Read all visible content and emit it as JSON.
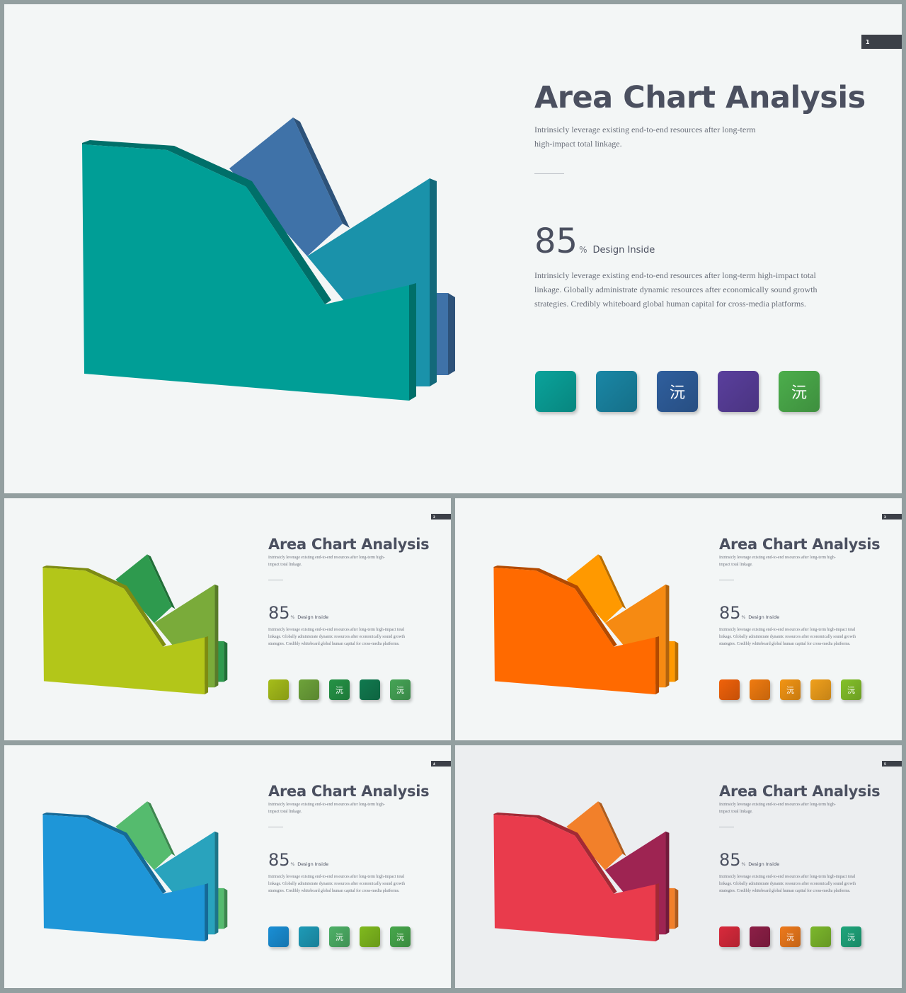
{
  "slides": [
    {
      "page": "1",
      "title": "Area Chart Analysis",
      "subtitle": "Intrinsicly leverage existing end-to-end resources after long-term high-impact total linkage.",
      "stat_value": "85",
      "stat_unit": "%",
      "stat_label": "Design Inside",
      "body": "Intrinsicly leverage existing end-to-end resources after long-term high-impact total linkage. Globally administrate dynamic resources after economically sound growth strategies. Credibly whiteboard global human capital for cross-media platforms.",
      "colors": {
        "back": "#3f72a8",
        "mid": "#1a92aa",
        "front": "#009e96"
      },
      "icons": [
        {
          "color": "#0aa39b",
          "glyph": ""
        },
        {
          "color": "#1a87a6",
          "glyph": ""
        },
        {
          "color": "#2f5f9e",
          "glyph": "沅"
        },
        {
          "color": "#5a3f9d",
          "glyph": ""
        },
        {
          "color": "#4cae4c",
          "glyph": "沅"
        }
      ]
    },
    {
      "page": "2",
      "title": "Area Chart Analysis",
      "subtitle": "Intrinsicly leverage existing end-to-end resources after long-term high-impact total linkage.",
      "stat_value": "85",
      "stat_unit": "%",
      "stat_label": "Design Inside",
      "body": "Intrinsicly leverage existing end-to-end resources after long-term high-impact total linkage. Globally administrate dynamic resources after economically sound growth strategies. Credibly whiteboard global human capital for cross-media platforms.",
      "colors": {
        "back": "#2e9a4e",
        "mid": "#7aab3a",
        "front": "#b3c619"
      },
      "icons": [
        {
          "color": "#a6bd1a",
          "glyph": ""
        },
        {
          "color": "#6ea33a",
          "glyph": ""
        },
        {
          "color": "#259346",
          "glyph": "沅"
        },
        {
          "color": "#117a4f",
          "glyph": ""
        },
        {
          "color": "#46a556",
          "glyph": "沅"
        }
      ]
    },
    {
      "page": "3",
      "title": "Area Chart Analysis",
      "subtitle": "Intrinsicly leverage existing end-to-end resources after long-term high-impact total linkage.",
      "stat_value": "85",
      "stat_unit": "%",
      "stat_label": "Design Inside",
      "body": "Intrinsicly leverage existing end-to-end resources after long-term high-impact total linkage. Globally administrate dynamic resources after economically sound growth strategies. Credibly whiteboard global human capital for cross-media platforms.",
      "colors": {
        "back": "#ff9900",
        "mid": "#f68a12",
        "front": "#ff6a00"
      },
      "icons": [
        {
          "color": "#f0620a",
          "glyph": ""
        },
        {
          "color": "#f07b10",
          "glyph": ""
        },
        {
          "color": "#f39514",
          "glyph": "沅"
        },
        {
          "color": "#f0a01c",
          "glyph": ""
        },
        {
          "color": "#84c12a",
          "glyph": "沅"
        }
      ]
    },
    {
      "page": "4",
      "title": "Area Chart Analysis",
      "subtitle": "Intrinsicly leverage existing end-to-end resources after long-term high-impact total linkage.",
      "stat_value": "85",
      "stat_unit": "%",
      "stat_label": "Design Inside",
      "body": "Intrinsicly leverage existing end-to-end resources after long-term high-impact total linkage. Globally administrate dynamic resources after economically sound growth strategies. Credibly whiteboard global human capital for cross-media platforms.",
      "colors": {
        "back": "#55bb6e",
        "mid": "#29a3bd",
        "front": "#1e96d8"
      },
      "icons": [
        {
          "color": "#1a8fd6",
          "glyph": ""
        },
        {
          "color": "#1e9bb8",
          "glyph": ""
        },
        {
          "color": "#4eb167",
          "glyph": "沅"
        },
        {
          "color": "#80ba1e",
          "glyph": ""
        },
        {
          "color": "#47a84c",
          "glyph": "沅"
        }
      ]
    },
    {
      "page": "5",
      "title": "Area Chart Analysis",
      "subtitle": "Intrinsicly leverage existing end-to-end resources after long-term high-impact total linkage.",
      "stat_value": "85",
      "stat_unit": "%",
      "stat_label": "Design Inside",
      "body": "Intrinsicly leverage existing end-to-end resources after long-term high-impact total linkage. Globally administrate dynamic resources after economically sound growth strategies. Credibly whiteboard global human capital for cross-media platforms.",
      "colors": {
        "back": "#f2802a",
        "mid": "#9e2452",
        "front": "#e93b4c"
      },
      "icons": [
        {
          "color": "#d92a3c",
          "glyph": ""
        },
        {
          "color": "#8d1f47",
          "glyph": ""
        },
        {
          "color": "#ee7a1c",
          "glyph": "沅"
        },
        {
          "color": "#7cb82c",
          "glyph": ""
        },
        {
          "color": "#1fa67c",
          "glyph": "沅"
        }
      ]
    }
  ]
}
